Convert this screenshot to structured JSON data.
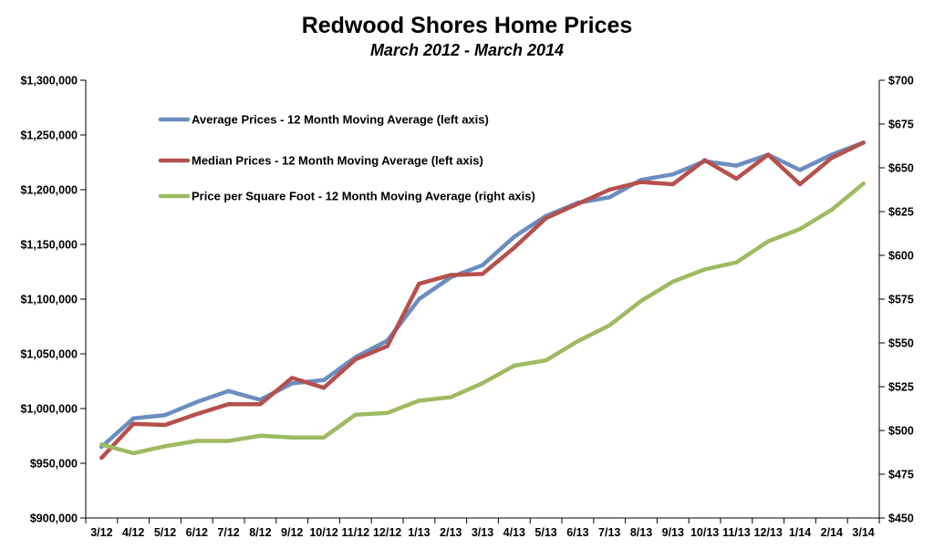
{
  "chart_data": {
    "type": "line",
    "title": "Redwood Shores Home Prices",
    "subtitle": "March 2012 - March 2014",
    "categories": [
      "3/12",
      "4/12",
      "5/12",
      "6/12",
      "7/12",
      "8/12",
      "9/12",
      "10/12",
      "11/12",
      "12/12",
      "1/13",
      "2/13",
      "3/13",
      "4/13",
      "5/13",
      "6/13",
      "7/13",
      "8/13",
      "9/13",
      "10/13",
      "11/13",
      "12/13",
      "1/14",
      "2/14",
      "3/14"
    ],
    "left_axis": {
      "ylim": [
        900000,
        1300000
      ],
      "ticks": [
        900000,
        950000,
        1000000,
        1050000,
        1100000,
        1150000,
        1200000,
        1250000,
        1300000
      ],
      "tick_labels": [
        "$900,000",
        "$950,000",
        "$1,000,000",
        "$1,050,000",
        "$1,100,000",
        "$1,150,000",
        "$1,200,000",
        "$1,250,000",
        "$1,300,000"
      ]
    },
    "right_axis": {
      "ylim": [
        450,
        700
      ],
      "ticks": [
        450,
        475,
        500,
        525,
        550,
        575,
        600,
        625,
        650,
        675,
        700
      ],
      "tick_labels": [
        "$450",
        "$475",
        "$500",
        "$525",
        "$550",
        "$575",
        "$600",
        "$625",
        "$650",
        "$675",
        "$700"
      ]
    },
    "series": [
      {
        "name": "Average Prices - 12 Month Moving Average (left axis)",
        "axis": "left",
        "color": "#6b8dc0",
        "values": [
          965000,
          991000,
          994000,
          1006000,
          1016000,
          1008000,
          1023000,
          1026000,
          1047000,
          1062000,
          1100000,
          1120000,
          1131000,
          1157000,
          1176000,
          1188000,
          1193000,
          1209000,
          1214000,
          1226000,
          1222000,
          1232000,
          1218000,
          1232000,
          1243000
        ]
      },
      {
        "name": "Median Prices - 12 Month Moving Average (left axis)",
        "axis": "left",
        "color": "#b5504c",
        "values": [
          955000,
          986000,
          985000,
          995000,
          1004000,
          1004000,
          1028000,
          1019000,
          1045000,
          1057000,
          1114000,
          1122000,
          1123000,
          1147000,
          1174000,
          1187000,
          1200000,
          1207000,
          1205000,
          1227000,
          1210000,
          1232000,
          1205000,
          1229000,
          1243000
        ]
      },
      {
        "name": "Price per Square Foot - 12 Month Moving Average (right axis)",
        "axis": "right",
        "color": "#9dbb61",
        "values": [
          492,
          487,
          491,
          494,
          494,
          497,
          496,
          496,
          509,
          510,
          517,
          519,
          527,
          537,
          540,
          551,
          560,
          574,
          585,
          592,
          596,
          608,
          615,
          626,
          641
        ]
      }
    ],
    "legend_position": "top-left",
    "grid": false
  }
}
